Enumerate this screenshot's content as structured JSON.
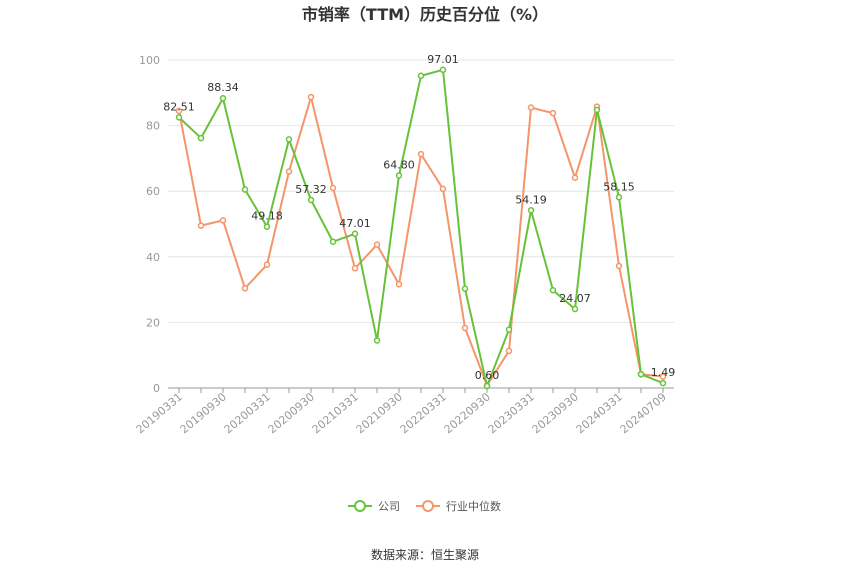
{
  "chart_data": {
    "type": "line",
    "title": "市销率（TTM）历史百分位（%）",
    "x": [
      "20190331",
      "20190630",
      "20190930",
      "20191231",
      "20200331",
      "20200630",
      "20200930",
      "20201231",
      "20210331",
      "20210630",
      "20210930",
      "20211231",
      "20220331",
      "20220630",
      "20220930",
      "20221231",
      "20230331",
      "20230630",
      "20230930",
      "20231231",
      "20240331",
      "20240630",
      "20240709"
    ],
    "x_tick_labels": [
      "20190331",
      "20190930",
      "20200331",
      "20200930",
      "20210331",
      "20210930",
      "20220331",
      "20220930",
      "20230331",
      "20230930",
      "20240331",
      "20240709"
    ],
    "series": [
      {
        "name": "公司",
        "color": "#67c23a",
        "values": [
          82.51,
          76.2,
          88.34,
          60.5,
          49.18,
          75.8,
          57.32,
          44.6,
          47.01,
          14.5,
          64.8,
          95.2,
          97.01,
          30.3,
          0.6,
          17.8,
          54.19,
          29.8,
          24.07,
          84.8,
          58.15,
          4.2,
          1.49
        ],
        "labels": [
          "82.51",
          "",
          "88.34",
          "",
          "49.18",
          "",
          "57.32",
          "",
          "47.01",
          "",
          "64.80",
          "",
          "97.01",
          "",
          "0.60",
          "",
          "54.19",
          "",
          "24.07",
          "",
          "58.15",
          "",
          "1.49"
        ]
      },
      {
        "name": "行业中位数",
        "color": "#f4956a",
        "values": [
          84.5,
          49.5,
          51.1,
          30.4,
          37.6,
          66.0,
          88.7,
          61.0,
          36.5,
          43.7,
          31.6,
          71.3,
          60.7,
          18.3,
          0.8,
          11.3,
          85.5,
          83.8,
          64.1,
          85.8,
          37.2,
          4.2,
          3.5
        ]
      }
    ],
    "y_ticks": [
      0,
      20,
      40,
      60,
      80,
      100
    ],
    "ylim": [
      0,
      100
    ],
    "grid": true,
    "legend": "bottom-center",
    "source": "数据来源：恒生聚源"
  }
}
